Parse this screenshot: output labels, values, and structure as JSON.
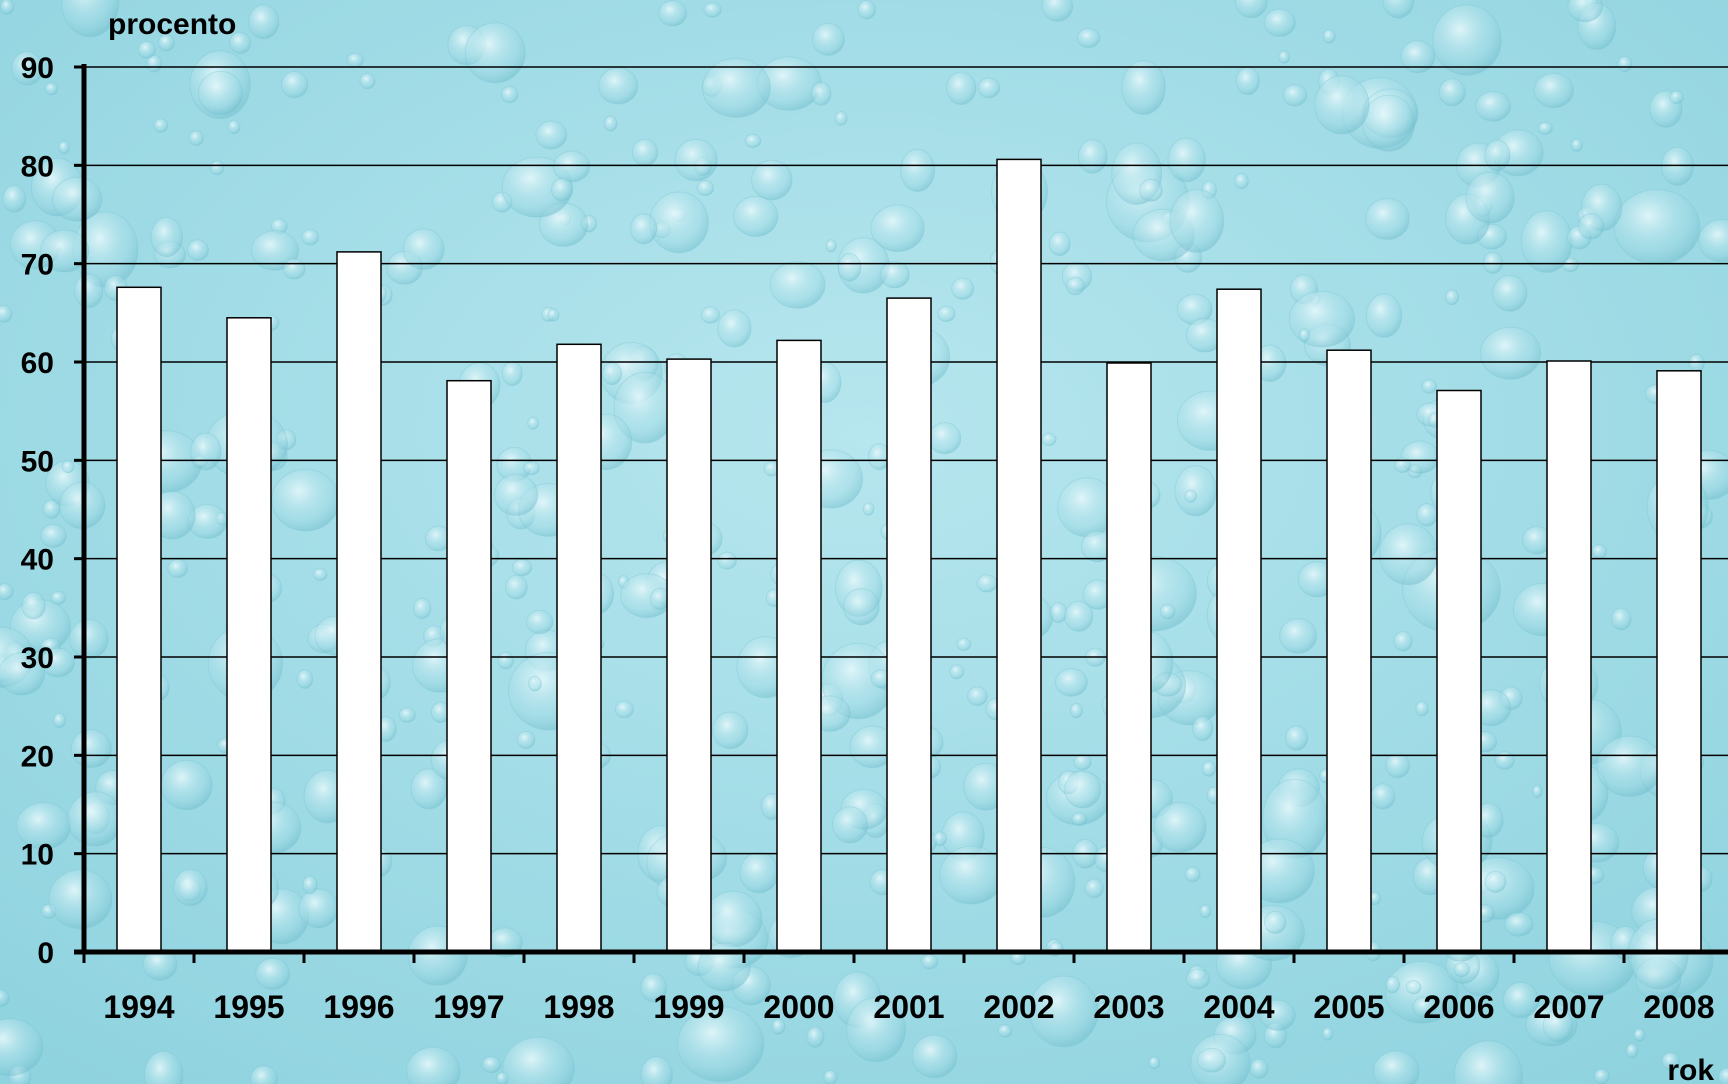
{
  "chart_data": {
    "type": "bar",
    "ylabel": "procento",
    "xlabel": "rok",
    "categories": [
      "1994",
      "1995",
      "1996",
      "1997",
      "1998",
      "1999",
      "2000",
      "2001",
      "2002",
      "2003",
      "2004",
      "2005",
      "2006",
      "2007",
      "2008"
    ],
    "series": [
      {
        "values": [
          67.6,
          64.5,
          71.2,
          58.1,
          61.8,
          60.3,
          62.2,
          66.5,
          80.6,
          59.9,
          67.4,
          61.2,
          57.1,
          60.1,
          59.1
        ]
      }
    ],
    "ylim": [
      0,
      90
    ],
    "yticks": [
      0,
      10,
      20,
      30,
      40,
      50,
      60,
      70,
      80,
      90
    ],
    "grid": true,
    "legend": "none",
    "colors": {
      "bar_fill": "#ffffff",
      "bar_stroke": "#000000",
      "grid": "#000000",
      "background": "#8fd3df",
      "background_light": "#b6e6ee"
    }
  }
}
